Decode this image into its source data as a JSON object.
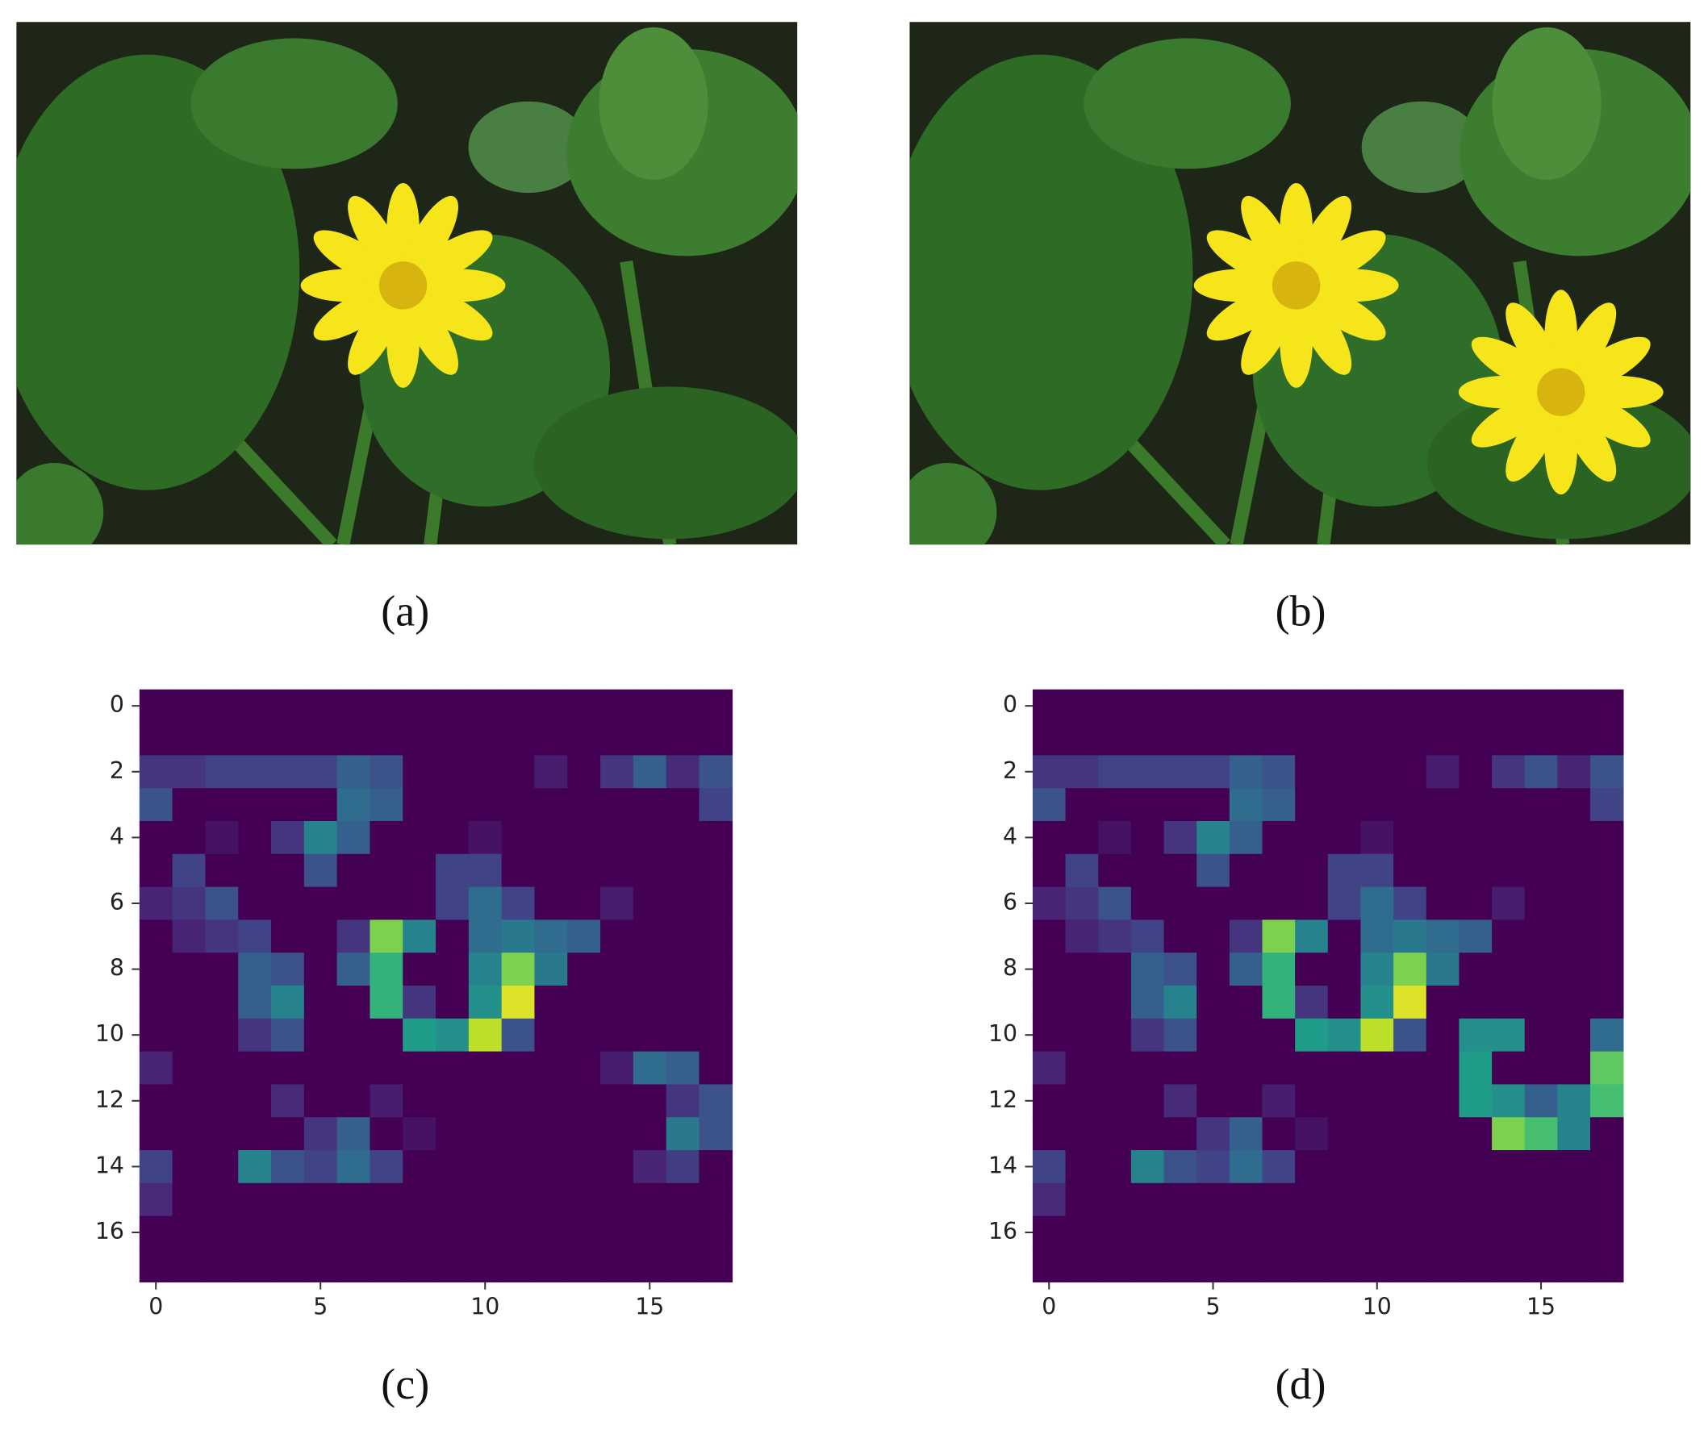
{
  "images": [
    {
      "caption": "(a)"
    },
    {
      "caption": "(b)"
    }
  ],
  "chart_data": [
    {
      "type": "heatmap",
      "caption": "(c)",
      "colormap": "viridis",
      "clim": [
        0,
        1
      ],
      "xlim": [
        -0.5,
        17.5
      ],
      "ylim": [
        17.5,
        -0.5
      ],
      "xticks": [
        0,
        5,
        10,
        15
      ],
      "yticks": [
        0,
        2,
        4,
        6,
        8,
        10,
        12,
        14,
        16
      ],
      "z": [
        [
          0,
          0,
          0,
          0,
          0,
          0,
          0,
          0,
          0,
          0,
          0,
          0,
          0,
          0,
          0,
          0,
          0,
          0
        ],
        [
          0,
          0,
          0,
          0,
          0,
          0,
          0,
          0,
          0,
          0,
          0,
          0,
          0,
          0,
          0,
          0,
          0,
          0
        ],
        [
          0.15,
          0.15,
          0.2,
          0.2,
          0.2,
          0.2,
          0.3,
          0.25,
          0,
          0,
          0,
          0,
          0.08,
          0,
          0.15,
          0.3,
          0.12,
          0.25
        ],
        [
          0.25,
          0,
          0,
          0,
          0,
          0,
          0.35,
          0.3,
          0,
          0,
          0,
          0,
          0,
          0,
          0,
          0,
          0,
          0.2
        ],
        [
          0,
          0,
          0.05,
          0,
          0.15,
          0.45,
          0.3,
          0,
          0,
          0,
          0.05,
          0,
          0,
          0,
          0,
          0,
          0,
          0
        ],
        [
          0,
          0.2,
          0,
          0,
          0,
          0.25,
          0,
          0,
          0,
          0.2,
          0.2,
          0,
          0,
          0,
          0,
          0,
          0,
          0
        ],
        [
          0.1,
          0.15,
          0.25,
          0,
          0,
          0,
          0,
          0,
          0,
          0.2,
          0.35,
          0.2,
          0,
          0,
          0.08,
          0,
          0,
          0
        ],
        [
          0,
          0.1,
          0.15,
          0.2,
          0,
          0,
          0.15,
          0.8,
          0.45,
          0,
          0.35,
          0.4,
          0.35,
          0.3,
          0,
          0,
          0,
          0
        ],
        [
          0,
          0,
          0,
          0.3,
          0.25,
          0,
          0.3,
          0.65,
          0,
          0,
          0.45,
          0.8,
          0.4,
          0,
          0,
          0,
          0,
          0
        ],
        [
          0,
          0,
          0,
          0.3,
          0.45,
          0,
          0,
          0.65,
          0.15,
          0,
          0.5,
          0.95,
          0,
          0,
          0,
          0,
          0,
          0
        ],
        [
          0,
          0,
          0,
          0.15,
          0.25,
          0,
          0,
          0,
          0.55,
          0.5,
          0.9,
          0.25,
          0,
          0,
          0,
          0,
          0,
          0
        ],
        [
          0.1,
          0,
          0,
          0,
          0,
          0,
          0,
          0,
          0,
          0,
          0,
          0,
          0,
          0,
          0.08,
          0.35,
          0.3,
          0
        ],
        [
          0,
          0,
          0,
          0,
          0.12,
          0,
          0,
          0.08,
          0,
          0,
          0,
          0,
          0,
          0,
          0,
          0,
          0.15,
          0.25
        ],
        [
          0,
          0,
          0,
          0,
          0,
          0.15,
          0.3,
          0,
          0.05,
          0,
          0,
          0,
          0,
          0,
          0,
          0,
          0.4,
          0.25
        ],
        [
          0.2,
          0,
          0,
          0.45,
          0.25,
          0.2,
          0.35,
          0.2,
          0,
          0,
          0,
          0,
          0,
          0,
          0,
          0.1,
          0.18,
          0
        ],
        [
          0.12,
          0,
          0,
          0,
          0,
          0,
          0,
          0,
          0,
          0,
          0,
          0,
          0,
          0,
          0,
          0,
          0,
          0
        ],
        [
          0,
          0,
          0,
          0,
          0,
          0,
          0,
          0,
          0,
          0,
          0,
          0,
          0,
          0,
          0,
          0,
          0,
          0
        ],
        [
          0,
          0,
          0,
          0,
          0,
          0,
          0,
          0,
          0,
          0,
          0,
          0,
          0,
          0,
          0,
          0,
          0,
          0
        ]
      ]
    },
    {
      "type": "heatmap",
      "caption": "(d)",
      "colormap": "viridis",
      "clim": [
        0,
        1
      ],
      "xlim": [
        -0.5,
        17.5
      ],
      "ylim": [
        17.5,
        -0.5
      ],
      "xticks": [
        0,
        5,
        10,
        15
      ],
      "yticks": [
        0,
        2,
        4,
        6,
        8,
        10,
        12,
        14,
        16
      ],
      "z": [
        [
          0,
          0,
          0,
          0,
          0,
          0,
          0,
          0,
          0,
          0,
          0,
          0,
          0,
          0,
          0,
          0,
          0,
          0
        ],
        [
          0,
          0,
          0,
          0,
          0,
          0,
          0,
          0,
          0,
          0,
          0,
          0,
          0,
          0,
          0,
          0,
          0,
          0
        ],
        [
          0.15,
          0.15,
          0.2,
          0.2,
          0.2,
          0.2,
          0.3,
          0.25,
          0,
          0,
          0,
          0,
          0.08,
          0,
          0.15,
          0.25,
          0.1,
          0.25
        ],
        [
          0.25,
          0,
          0,
          0,
          0,
          0,
          0.35,
          0.3,
          0,
          0,
          0,
          0,
          0,
          0,
          0,
          0,
          0,
          0.2
        ],
        [
          0,
          0,
          0.05,
          0,
          0.15,
          0.45,
          0.3,
          0,
          0,
          0,
          0.05,
          0,
          0,
          0,
          0,
          0,
          0,
          0
        ],
        [
          0,
          0.2,
          0,
          0,
          0,
          0.25,
          0,
          0,
          0,
          0.2,
          0.2,
          0,
          0,
          0,
          0,
          0,
          0,
          0
        ],
        [
          0.1,
          0.15,
          0.25,
          0,
          0,
          0,
          0,
          0,
          0,
          0.2,
          0.35,
          0.2,
          0,
          0,
          0.08,
          0,
          0,
          0
        ],
        [
          0,
          0.1,
          0.15,
          0.2,
          0,
          0,
          0.15,
          0.8,
          0.45,
          0,
          0.35,
          0.4,
          0.35,
          0.3,
          0,
          0,
          0,
          0
        ],
        [
          0,
          0,
          0,
          0.3,
          0.25,
          0,
          0.3,
          0.65,
          0,
          0,
          0.45,
          0.8,
          0.4,
          0,
          0,
          0,
          0,
          0
        ],
        [
          0,
          0,
          0,
          0.3,
          0.45,
          0,
          0,
          0.65,
          0.15,
          0,
          0.5,
          0.95,
          0,
          0,
          0,
          0,
          0,
          0
        ],
        [
          0,
          0,
          0,
          0.15,
          0.25,
          0,
          0,
          0,
          0.55,
          0.5,
          0.9,
          0.25,
          0,
          0.5,
          0.5,
          0,
          0,
          0.35
        ],
        [
          0.1,
          0,
          0,
          0,
          0,
          0,
          0,
          0,
          0,
          0,
          0,
          0,
          0,
          0.55,
          0,
          0,
          0,
          0.75
        ],
        [
          0,
          0,
          0,
          0,
          0.12,
          0,
          0,
          0.08,
          0,
          0,
          0,
          0,
          0,
          0.55,
          0.5,
          0.3,
          0.45,
          0.7
        ],
        [
          0,
          0,
          0,
          0,
          0,
          0.15,
          0.3,
          0,
          0.05,
          0,
          0,
          0,
          0,
          0,
          0.8,
          0.7,
          0.45,
          0
        ],
        [
          0.2,
          0,
          0,
          0.45,
          0.25,
          0.2,
          0.35,
          0.2,
          0,
          0,
          0,
          0,
          0,
          0,
          0,
          0,
          0,
          0
        ],
        [
          0.12,
          0,
          0,
          0,
          0,
          0,
          0,
          0,
          0,
          0,
          0,
          0,
          0,
          0,
          0,
          0,
          0,
          0
        ],
        [
          0,
          0,
          0,
          0,
          0,
          0,
          0,
          0,
          0,
          0,
          0,
          0,
          0,
          0,
          0,
          0,
          0,
          0
        ],
        [
          0,
          0,
          0,
          0,
          0,
          0,
          0,
          0,
          0,
          0,
          0,
          0,
          0,
          0,
          0,
          0,
          0,
          0
        ]
      ]
    }
  ]
}
